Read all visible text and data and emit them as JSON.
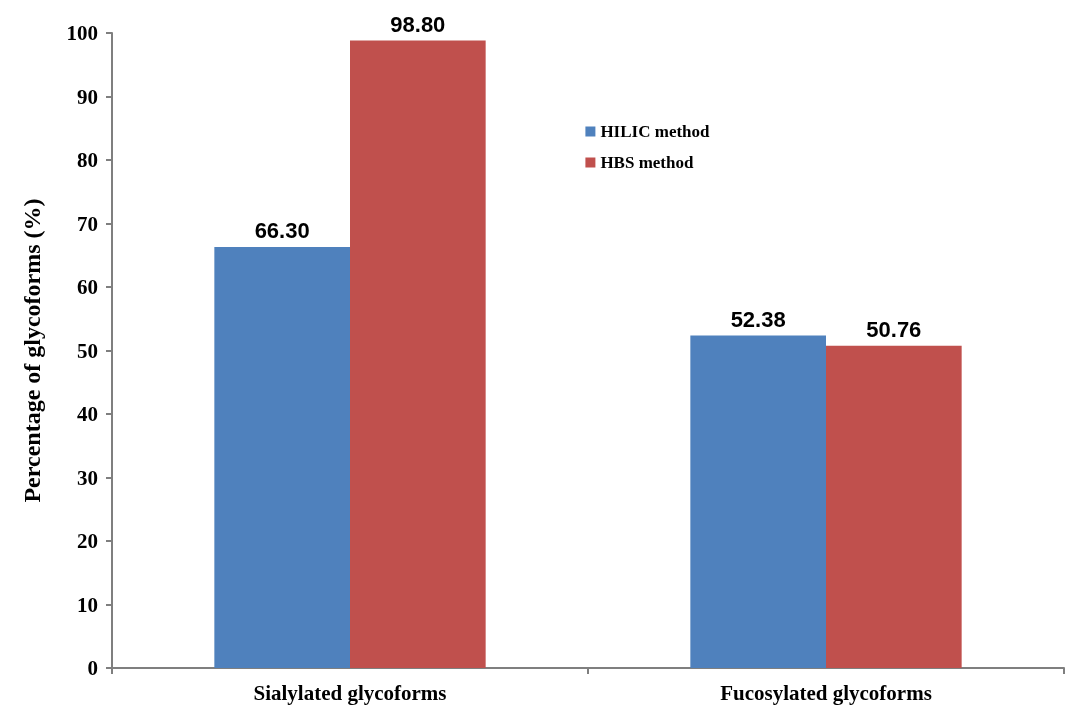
{
  "chart_data": {
    "type": "bar",
    "ylabel": "Percentage of glycoforms (%)",
    "categories": [
      "Sialylated glycoforms",
      "Fucosylated glycoforms"
    ],
    "series": [
      {
        "name": "HILIC method",
        "color": "#4f81bd",
        "values": [
          66.3,
          52.38
        ],
        "value_labels": [
          "66.30",
          "52.38"
        ]
      },
      {
        "name": "HBS method",
        "color": "#c0504d",
        "values": [
          98.8,
          50.76
        ],
        "value_labels": [
          "98.80",
          "50.76"
        ]
      }
    ],
    "ylim": [
      0,
      100
    ],
    "yticks": [
      0,
      10,
      20,
      30,
      40,
      50,
      60,
      70,
      80,
      90,
      100
    ],
    "grid": false,
    "legend": "top"
  }
}
